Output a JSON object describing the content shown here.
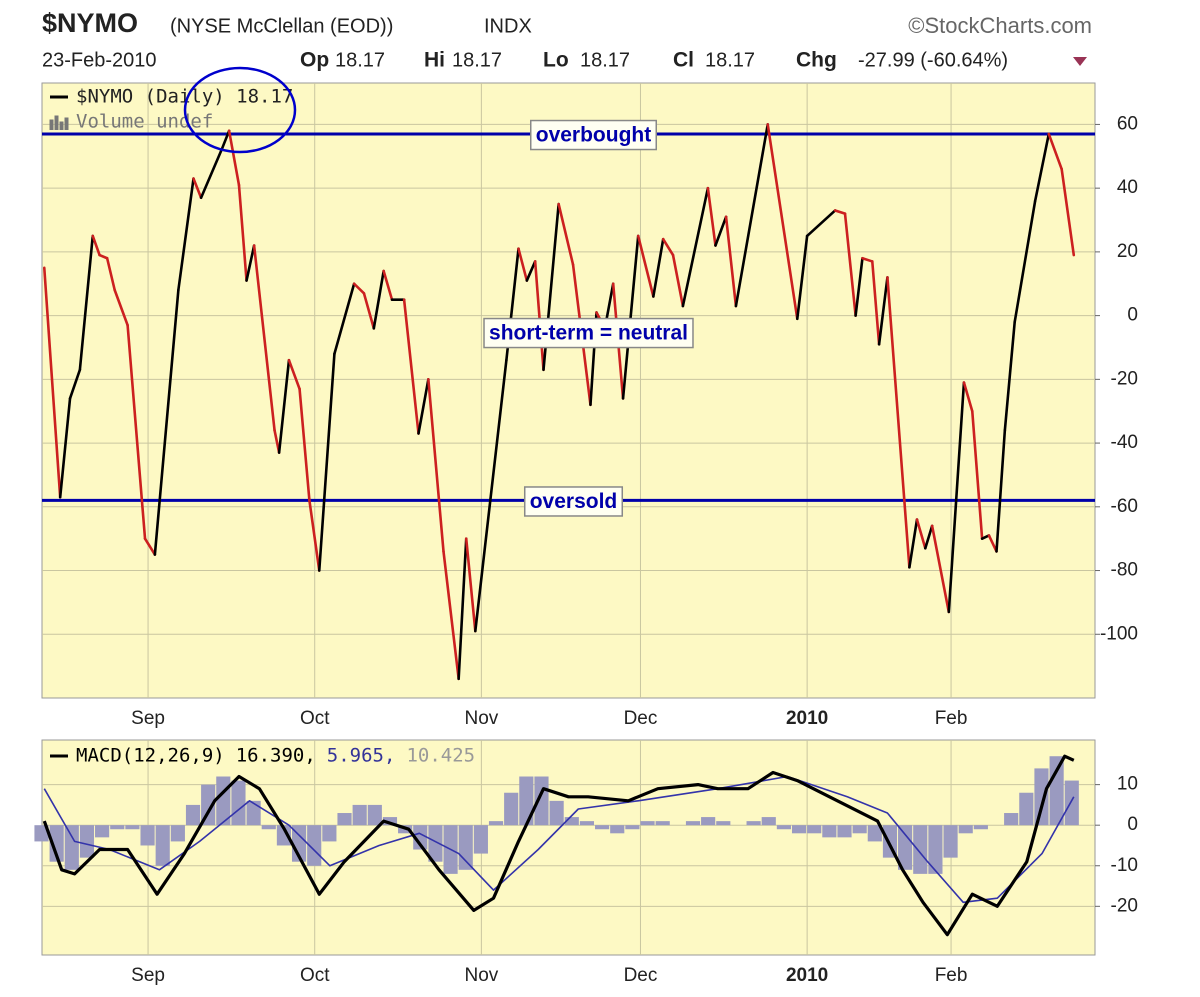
{
  "header": {
    "symbol": "$NYMO",
    "name": "(NYSE McClellan (EOD))",
    "exchange": "INDX",
    "source": "©StockCharts.com",
    "date": "23-Feb-2010",
    "open_label": "Op",
    "open": "18.17",
    "high_label": "Hi",
    "high": "18.17",
    "low_label": "Lo",
    "low": "18.17",
    "close_label": "Cl",
    "close": "18.17",
    "change_label": "Chg",
    "change": "-27.99 (-60.64%)"
  },
  "chart_data": [
    {
      "type": "line",
      "legend": "$NYMO (Daily) 18.17",
      "legend_sub": "Volume undef",
      "x": [
        0.3,
        2.4,
        3.7,
        5,
        6.7,
        7.6,
        8.6,
        9.6,
        11.3,
        13.6,
        14.9,
        18,
        20,
        21,
        23.7,
        24.7,
        26,
        27,
        28,
        30.7,
        31.3,
        32.6,
        34,
        35.3,
        36.6,
        38.6,
        41.2,
        42.5,
        43.8,
        45.1,
        46.2,
        47.8,
        49.7,
        51,
        53,
        55,
        56,
        57.2,
        61.3,
        62.9,
        64,
        65.1,
        66.2,
        68.2,
        70.1,
        72.4,
        73.2,
        74.3,
        75.4,
        76.7,
        78.7,
        80.7,
        82,
        83.3,
        84.6,
        87.9,
        88.9,
        90.3,
        91.6,
        95.8,
        99.7,
        101,
        104.7,
        106,
        107.4,
        108.3,
        109.6,
        110.5,
        111.6,
        114.5,
        115.5,
        116.6,
        117.5,
        119.7,
        121.7,
        122.8,
        124.1,
        125,
        126,
        127.1,
        128.4,
        131.1,
        132.9,
        134.6,
        136.2
      ],
      "values": [
        15,
        -57,
        -26,
        -17,
        25,
        19,
        18,
        8,
        -3,
        -70,
        -75,
        8,
        43,
        37,
        52,
        58,
        41,
        11,
        22,
        -36,
        -43,
        -14,
        -23,
        -58,
        -80,
        -12,
        10,
        7,
        -4,
        14,
        5,
        5,
        -37,
        -20,
        -74,
        -114,
        -70,
        -99,
        -14,
        21,
        11,
        17,
        -17,
        35,
        16,
        -28,
        1,
        -4,
        10,
        -26,
        25,
        6,
        24,
        19,
        3,
        40,
        22,
        31,
        3,
        60,
        -1,
        25,
        33,
        32,
        0,
        18,
        17,
        -9,
        12,
        -79,
        -64,
        -73,
        -66,
        -93,
        -21,
        -30,
        -70,
        -69,
        -74,
        -36,
        -2,
        36,
        57,
        46,
        19
      ],
      "up_color": "#000000",
      "down_color": "#cc2020",
      "xlim": [
        0,
        139
      ],
      "ylim": [
        -120,
        73
      ],
      "xticks": [
        {
          "value": 14,
          "label": "Sep"
        },
        {
          "value": 36,
          "label": "Oct"
        },
        {
          "value": 58,
          "label": "Nov"
        },
        {
          "value": 79,
          "label": "Dec"
        },
        {
          "value": 101,
          "label": "2010"
        },
        {
          "value": 120,
          "label": "Feb"
        }
      ],
      "yticks": [
        60,
        40,
        20,
        0,
        -20,
        -40,
        -60,
        -80,
        -100
      ],
      "hlines": [
        {
          "value": 57,
          "label": "overbought"
        },
        {
          "value": -58,
          "label": "oversold"
        }
      ],
      "hline_color": "#0000aa",
      "annotations": [
        "short-term = neutral"
      ],
      "background": "#fdf9c4",
      "grid": true
    },
    {
      "type": "macd",
      "legend": [
        "MACD(12,26,9)",
        "16.390,",
        "5.965,",
        "10.425"
      ],
      "legend_colors": [
        "#000000",
        "#000000",
        "#333399",
        "#999999"
      ],
      "series": [
        {
          "kind": "bars",
          "color": "#9a9ac0",
          "width": 2,
          "x": [
            0,
            2,
            4,
            6,
            8,
            10,
            12,
            14,
            16,
            18,
            20,
            22,
            24,
            26,
            28,
            30,
            32,
            34,
            36,
            38,
            40,
            42,
            44,
            46,
            48,
            50,
            52,
            54,
            56,
            58,
            60,
            62,
            64,
            66,
            68,
            70,
            72,
            74,
            76,
            78,
            80,
            82,
            84,
            86,
            88,
            90,
            92,
            94,
            96,
            98,
            100,
            102,
            104,
            106,
            108,
            110,
            112,
            114,
            116,
            118,
            120,
            122,
            124,
            126,
            128,
            130,
            132,
            134,
            136
          ],
          "values": [
            -4,
            -9,
            -11,
            -8,
            -3,
            -1,
            -1,
            -5,
            -10,
            -4,
            5,
            10,
            12,
            11,
            6,
            -1,
            -5,
            -9,
            -10,
            -4,
            3,
            5,
            5,
            2,
            -2,
            -6,
            -9,
            -12,
            -11,
            -7,
            1,
            8,
            12,
            12,
            6,
            2,
            1,
            -1,
            -2,
            -1,
            1,
            1,
            0,
            1,
            2,
            1,
            0,
            1,
            2,
            -1,
            -2,
            -2,
            -3,
            -3,
            -2,
            -4,
            -8,
            -11,
            -12,
            -12,
            -8,
            -2,
            -1,
            0,
            3,
            8,
            14,
            17,
            11
          ]
        },
        {
          "kind": "line",
          "color": "#3333aa",
          "width": 1.6,
          "x": [
            0.3,
            4.3,
            8.9,
            15.5,
            20.8,
            27.4,
            32.6,
            38,
            44.5,
            49.8,
            55,
            59.6,
            65.5,
            70.8,
            78.7,
            89.2,
            98.4,
            106.3,
            111.6,
            116.9,
            121.6,
            126.1,
            132,
            136.2
          ],
          "values": [
            9,
            -4,
            -6,
            -11,
            -4,
            6,
            0,
            -10,
            -5,
            -2,
            -7,
            -16,
            -6,
            4,
            6,
            9,
            12,
            7,
            3,
            -9,
            -19,
            -18,
            -7,
            7
          ]
        },
        {
          "kind": "line",
          "color": "#000000",
          "width": 3.2,
          "x": [
            0.3,
            2.6,
            4.3,
            7.6,
            11.3,
            15.2,
            18.8,
            22.8,
            26,
            28.7,
            32,
            36.6,
            39.9,
            45.1,
            48.4,
            52.4,
            57,
            59.6,
            62.9,
            66.2,
            69.5,
            72.1,
            77.4,
            81.3,
            86.6,
            89.2,
            93.2,
            96.5,
            99.7,
            105,
            110.3,
            113.6,
            116.3,
            119.5,
            122.8,
            126.1,
            130,
            132.6,
            135,
            136.2
          ],
          "values": [
            1,
            -11,
            -12,
            -6,
            -6,
            -17,
            -7,
            6,
            12,
            9,
            -1,
            -17,
            -9,
            1,
            -1,
            -11,
            -21,
            -18,
            -4,
            9,
            7,
            7,
            6,
            9,
            10,
            9,
            9,
            13,
            11,
            6,
            1,
            -11,
            -19,
            -27,
            -17,
            -20,
            -9,
            9,
            17,
            16
          ]
        }
      ],
      "xlim": [
        0,
        139
      ],
      "ylim": [
        -32,
        21
      ],
      "xticks": [
        {
          "value": 14,
          "label": "Sep"
        },
        {
          "value": 36,
          "label": "Oct"
        },
        {
          "value": 58,
          "label": "Nov"
        },
        {
          "value": 79,
          "label": "Dec"
        },
        {
          "value": 101,
          "label": "2010"
        },
        {
          "value": 120,
          "label": "Feb"
        }
      ],
      "yticks": [
        10,
        0,
        -10,
        -20
      ],
      "background": "#fdf9c4",
      "grid": true
    }
  ]
}
